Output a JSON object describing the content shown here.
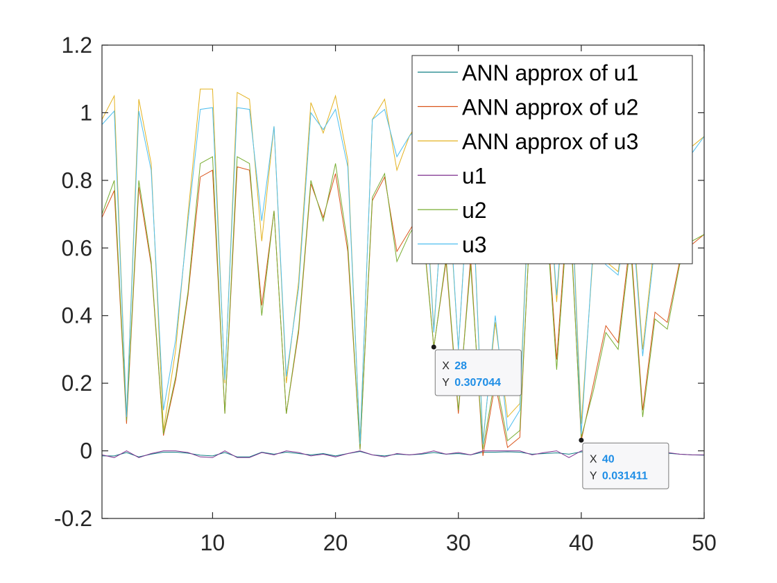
{
  "chart_data": {
    "type": "line",
    "title": "",
    "xlabel": "",
    "ylabel": "",
    "xlim": [
      1,
      50
    ],
    "ylim": [
      -0.2,
      1.2
    ],
    "x_ticks": [
      10,
      20,
      30,
      40,
      50
    ],
    "x_tick_labels": [
      "10",
      "20",
      "30",
      "40",
      "50"
    ],
    "y_ticks": [
      -0.2,
      0,
      0.2,
      0.4,
      0.6,
      0.8,
      1,
      1.2
    ],
    "y_tick_labels": [
      "-0.2",
      "0",
      "0.2",
      "0.4",
      "0.6",
      "0.8",
      "1",
      "1.2"
    ],
    "grid": false,
    "legend_position": "top-right",
    "x": [
      1,
      2,
      3,
      4,
      5,
      6,
      7,
      8,
      9,
      10,
      11,
      12,
      13,
      14,
      15,
      16,
      17,
      18,
      19,
      20,
      21,
      22,
      23,
      24,
      25,
      26,
      27,
      28,
      29,
      30,
      31,
      32,
      33,
      34,
      35,
      36,
      37,
      38,
      39,
      40,
      41,
      42,
      43,
      44,
      45,
      46,
      47,
      48,
      49,
      50
    ],
    "series": [
      {
        "name": "ANN approx of u1",
        "color": "#0f7f84",
        "values": [
          -0.015,
          -0.015,
          -0.005,
          -0.018,
          -0.01,
          -0.004,
          -0.004,
          -0.007,
          -0.013,
          -0.015,
          -0.005,
          -0.018,
          -0.018,
          -0.004,
          -0.01,
          -0.004,
          -0.008,
          -0.012,
          -0.008,
          -0.015,
          -0.008,
          -0.002,
          -0.012,
          -0.015,
          -0.01,
          -0.012,
          -0.01,
          -0.005,
          -0.01,
          -0.008,
          -0.012,
          -0.004,
          -0.004,
          -0.003,
          -0.004,
          -0.01,
          -0.008,
          -0.006,
          -0.01,
          -0.003,
          -0.004,
          -0.007,
          -0.01,
          -0.01,
          -0.005,
          -0.006,
          -0.007,
          -0.01,
          -0.012,
          -0.013
        ]
      },
      {
        "name": "ANN approx of u2",
        "color": "#d95319",
        "values": [
          0.69,
          0.77,
          0.08,
          0.78,
          0.55,
          0.045,
          0.21,
          0.46,
          0.81,
          0.83,
          0.11,
          0.84,
          0.83,
          0.43,
          0.71,
          0.11,
          0.35,
          0.79,
          0.69,
          0.82,
          0.59,
          0.003,
          0.74,
          0.81,
          0.59,
          0.65,
          0.71,
          0.307,
          0.56,
          0.11,
          0.57,
          -0.015,
          0.2,
          0.01,
          0.04,
          0.8,
          0.8,
          0.27,
          0.77,
          0.031,
          0.2,
          0.37,
          0.32,
          0.63,
          0.12,
          0.41,
          0.38,
          0.56,
          0.61,
          0.64
        ]
      },
      {
        "name": "ANN approx of u3",
        "color": "#e3b220",
        "values": [
          0.98,
          1.05,
          0.1,
          1.04,
          0.85,
          0.06,
          0.3,
          0.7,
          1.07,
          1.07,
          0.2,
          1.06,
          1.04,
          0.62,
          0.96,
          0.2,
          0.5,
          1.03,
          0.94,
          1.05,
          0.86,
          0.02,
          0.98,
          1.04,
          0.83,
          0.93,
          0.99,
          0.36,
          0.88,
          0.3,
          0.9,
          0.03,
          0.38,
          0.1,
          0.14,
          1.0,
          0.98,
          0.44,
          0.95,
          0.08,
          0.6,
          0.56,
          0.53,
          0.78,
          0.3,
          0.63,
          0.58,
          0.8,
          0.9,
          0.93
        ]
      },
      {
        "name": "u1",
        "color": "#7e2f8e",
        "values": [
          -0.012,
          -0.02,
          0.0,
          -0.02,
          -0.008,
          0.0,
          0.0,
          -0.005,
          -0.018,
          -0.02,
          0.0,
          -0.02,
          -0.02,
          -0.005,
          -0.012,
          0.0,
          -0.005,
          -0.015,
          -0.01,
          -0.018,
          -0.008,
          0.0,
          -0.012,
          -0.018,
          -0.008,
          -0.012,
          -0.008,
          0.0,
          -0.01,
          -0.005,
          -0.012,
          0.0,
          0.0,
          0.0,
          0.0,
          -0.012,
          -0.005,
          0.0,
          -0.02,
          0.0,
          0.0,
          -0.008,
          -0.012,
          -0.012,
          0.0,
          -0.005,
          -0.005,
          -0.01,
          -0.012,
          -0.012
        ]
      },
      {
        "name": "u2",
        "color": "#77ac30",
        "values": [
          0.7,
          0.8,
          0.09,
          0.8,
          0.56,
          0.05,
          0.22,
          0.47,
          0.85,
          0.87,
          0.11,
          0.87,
          0.85,
          0.4,
          0.71,
          0.11,
          0.36,
          0.8,
          0.68,
          0.85,
          0.61,
          0.005,
          0.75,
          0.82,
          0.56,
          0.64,
          0.7,
          0.305,
          0.57,
          0.12,
          0.55,
          0.005,
          0.22,
          0.03,
          0.06,
          0.79,
          0.78,
          0.24,
          0.75,
          0.04,
          0.18,
          0.35,
          0.3,
          0.61,
          0.1,
          0.39,
          0.36,
          0.55,
          0.62,
          0.64
        ]
      },
      {
        "name": "u3",
        "color": "#4dbeee",
        "values": [
          0.965,
          1.005,
          0.1,
          1.005,
          0.83,
          0.12,
          0.33,
          0.68,
          1.01,
          1.015,
          0.21,
          1.015,
          1.01,
          0.68,
          0.96,
          0.22,
          0.48,
          1.0,
          0.95,
          1.01,
          0.84,
          0.02,
          0.98,
          1.01,
          0.87,
          0.93,
          0.97,
          0.35,
          0.9,
          0.3,
          0.89,
          0.02,
          0.4,
          0.06,
          0.12,
          0.98,
          0.96,
          0.46,
          0.94,
          0.05,
          0.62,
          0.55,
          0.52,
          0.76,
          0.28,
          0.61,
          0.56,
          0.78,
          0.88,
          0.93
        ]
      }
    ],
    "datatips": [
      {
        "x_label": "X",
        "x_value": "28",
        "y_label": "Y",
        "y_value": "0.307044",
        "x": 28,
        "y": 0.307044
      },
      {
        "x_label": "X",
        "x_value": "40",
        "y_label": "Y",
        "y_value": "0.031411",
        "x": 40,
        "y": 0.031411
      }
    ]
  }
}
